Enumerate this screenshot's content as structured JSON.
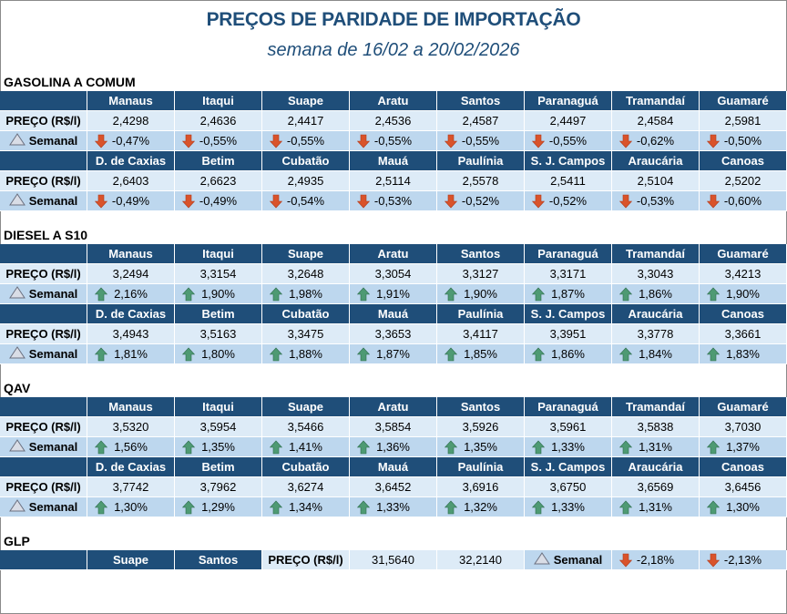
{
  "title": "PREÇOS DE PARIDADE DE IMPORTAÇÃO",
  "subtitle": "semana de 16/02 a 20/02/2026",
  "row_labels": {
    "price": "PREÇO (R$/l)",
    "weekly": "Semanal"
  },
  "colors": {
    "header": "#1F4E79",
    "price_row": "#DDEBF7",
    "weekly_row": "#BDD7EE",
    "down": "#D9532B",
    "up": "#4E9A73"
  },
  "sections": [
    {
      "name": "GASOLINA A COMUM",
      "blocks": [
        {
          "locations": [
            "Manaus",
            "Itaqui",
            "Suape",
            "Aratu",
            "Santos",
            "Paranaguá",
            "Tramandaí",
            "Guamaré"
          ],
          "prices": [
            "2,4298",
            "2,4636",
            "2,4417",
            "2,4536",
            "2,4587",
            "2,4497",
            "2,4584",
            "2,5981"
          ],
          "weekly": [
            "-0,47%",
            "-0,55%",
            "-0,55%",
            "-0,55%",
            "-0,55%",
            "-0,55%",
            "-0,62%",
            "-0,50%"
          ],
          "trend": [
            "down",
            "down",
            "down",
            "down",
            "down",
            "down",
            "down",
            "down"
          ]
        },
        {
          "locations": [
            "D. de Caxias",
            "Betim",
            "Cubatão",
            "Mauá",
            "Paulínia",
            "S. J. Campos",
            "Araucária",
            "Canoas"
          ],
          "prices": [
            "2,6403",
            "2,6623",
            "2,4935",
            "2,5114",
            "2,5578",
            "2,5411",
            "2,5104",
            "2,5202"
          ],
          "weekly": [
            "-0,49%",
            "-0,49%",
            "-0,54%",
            "-0,53%",
            "-0,52%",
            "-0,52%",
            "-0,53%",
            "-0,60%"
          ],
          "trend": [
            "down",
            "down",
            "down",
            "down",
            "down",
            "down",
            "down",
            "down"
          ]
        }
      ]
    },
    {
      "name": "DIESEL A S10",
      "blocks": [
        {
          "locations": [
            "Manaus",
            "Itaqui",
            "Suape",
            "Aratu",
            "Santos",
            "Paranaguá",
            "Tramandaí",
            "Guamaré"
          ],
          "prices": [
            "3,2494",
            "3,3154",
            "3,2648",
            "3,3054",
            "3,3127",
            "3,3171",
            "3,3043",
            "3,4213"
          ],
          "weekly": [
            "2,16%",
            "1,90%",
            "1,98%",
            "1,91%",
            "1,90%",
            "1,87%",
            "1,86%",
            "1,90%"
          ],
          "trend": [
            "up",
            "up",
            "up",
            "up",
            "up",
            "up",
            "up",
            "up"
          ]
        },
        {
          "locations": [
            "D. de Caxias",
            "Betim",
            "Cubatão",
            "Mauá",
            "Paulínia",
            "S. J. Campos",
            "Araucária",
            "Canoas"
          ],
          "prices": [
            "3,4943",
            "3,5163",
            "3,3475",
            "3,3653",
            "3,4117",
            "3,3951",
            "3,3778",
            "3,3661"
          ],
          "weekly": [
            "1,81%",
            "1,80%",
            "1,88%",
            "1,87%",
            "1,85%",
            "1,86%",
            "1,84%",
            "1,83%"
          ],
          "trend": [
            "up",
            "up",
            "up",
            "up",
            "up",
            "up",
            "up",
            "up"
          ]
        }
      ]
    },
    {
      "name": "QAV",
      "blocks": [
        {
          "locations": [
            "Manaus",
            "Itaqui",
            "Suape",
            "Aratu",
            "Santos",
            "Paranaguá",
            "Tramandaí",
            "Guamaré"
          ],
          "prices": [
            "3,5320",
            "3,5954",
            "3,5466",
            "3,5854",
            "3,5926",
            "3,5961",
            "3,5838",
            "3,7030"
          ],
          "weekly": [
            "1,56%",
            "1,35%",
            "1,41%",
            "1,36%",
            "1,35%",
            "1,33%",
            "1,31%",
            "1,37%"
          ],
          "trend": [
            "up",
            "up",
            "up",
            "up",
            "up",
            "up",
            "up",
            "up"
          ]
        },
        {
          "locations": [
            "D. de Caxias",
            "Betim",
            "Cubatão",
            "Mauá",
            "Paulínia",
            "S. J. Campos",
            "Araucária",
            "Canoas"
          ],
          "prices": [
            "3,7742",
            "3,7962",
            "3,6274",
            "3,6452",
            "3,6916",
            "3,6750",
            "3,6569",
            "3,6456"
          ],
          "weekly": [
            "1,30%",
            "1,29%",
            "1,34%",
            "1,33%",
            "1,32%",
            "1,33%",
            "1,31%",
            "1,30%"
          ],
          "trend": [
            "up",
            "up",
            "up",
            "up",
            "up",
            "up",
            "up",
            "up"
          ]
        }
      ]
    },
    {
      "name": "GLP",
      "blocks": [
        {
          "locations": [
            "Suape",
            "Santos"
          ],
          "prices": [
            "31,5640",
            "32,2140"
          ],
          "weekly": [
            "-2,18%",
            "-2,13%"
          ],
          "trend": [
            "down",
            "down"
          ]
        }
      ]
    }
  ]
}
